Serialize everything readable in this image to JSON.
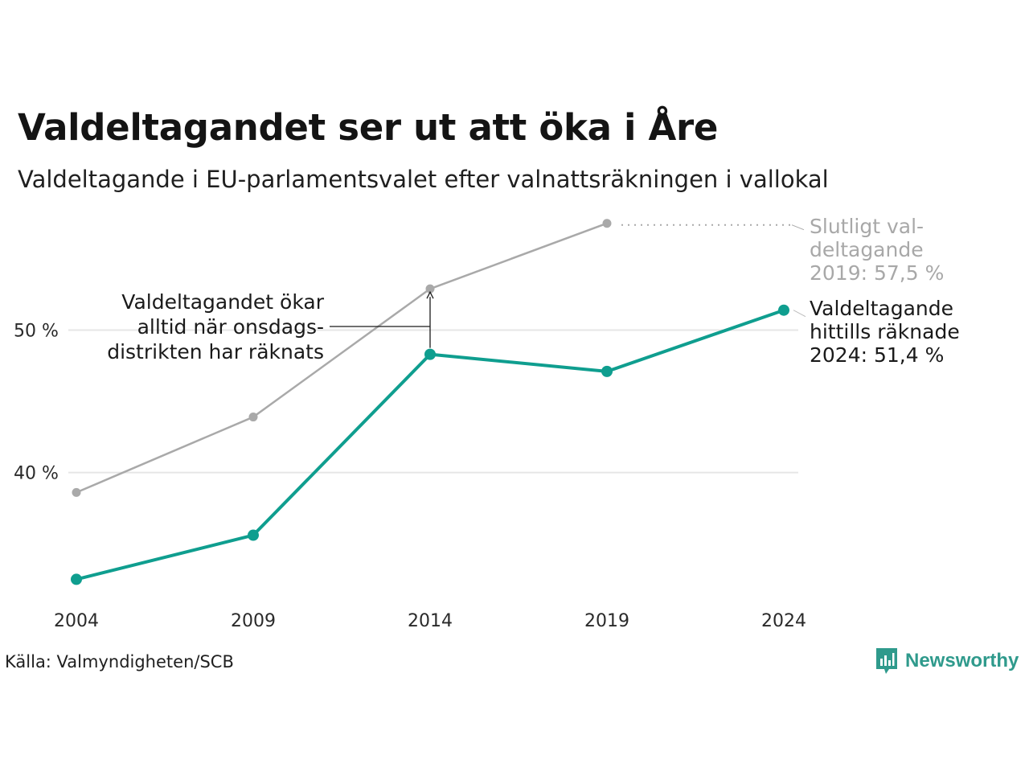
{
  "title": "Valdeltagandet ser ut att öka i Åre",
  "subtitle": "Valdeltagande i EU-parlamentsvalet efter valnattsräkningen i vallokal",
  "source": "Källa: Valmyndigheten/SCB",
  "brand": {
    "name": "Newsworthy",
    "icon": "newsworthy-logo-icon",
    "color": "#2f9a8c"
  },
  "chart_data": {
    "type": "line",
    "categories": [
      "2004",
      "2009",
      "2014",
      "2019",
      "2024"
    ],
    "ytick_labels": [
      "40 %",
      "50 %"
    ],
    "yticks": [
      40,
      50
    ],
    "ylim": [
      31,
      58.5
    ],
    "grid": true,
    "series": [
      {
        "key": "final",
        "color": "#a9a9a9",
        "values": [
          38.6,
          43.9,
          52.9,
          57.5,
          null
        ]
      },
      {
        "key": "counted",
        "color": "#0f9e8f",
        "values": [
          32.5,
          35.6,
          48.3,
          47.1,
          51.4
        ]
      }
    ],
    "annotations": {
      "final_label": [
        "Slutligt val-",
        "deltagande",
        "2019: 57,5 %"
      ],
      "counted_label": [
        "Valdeltagande",
        "hittills räknade",
        "2024: 51,4 %"
      ],
      "note": [
        "Valdeltagandet ökar",
        "alltid när onsdags-",
        "distrikten har räknats"
      ]
    }
  }
}
